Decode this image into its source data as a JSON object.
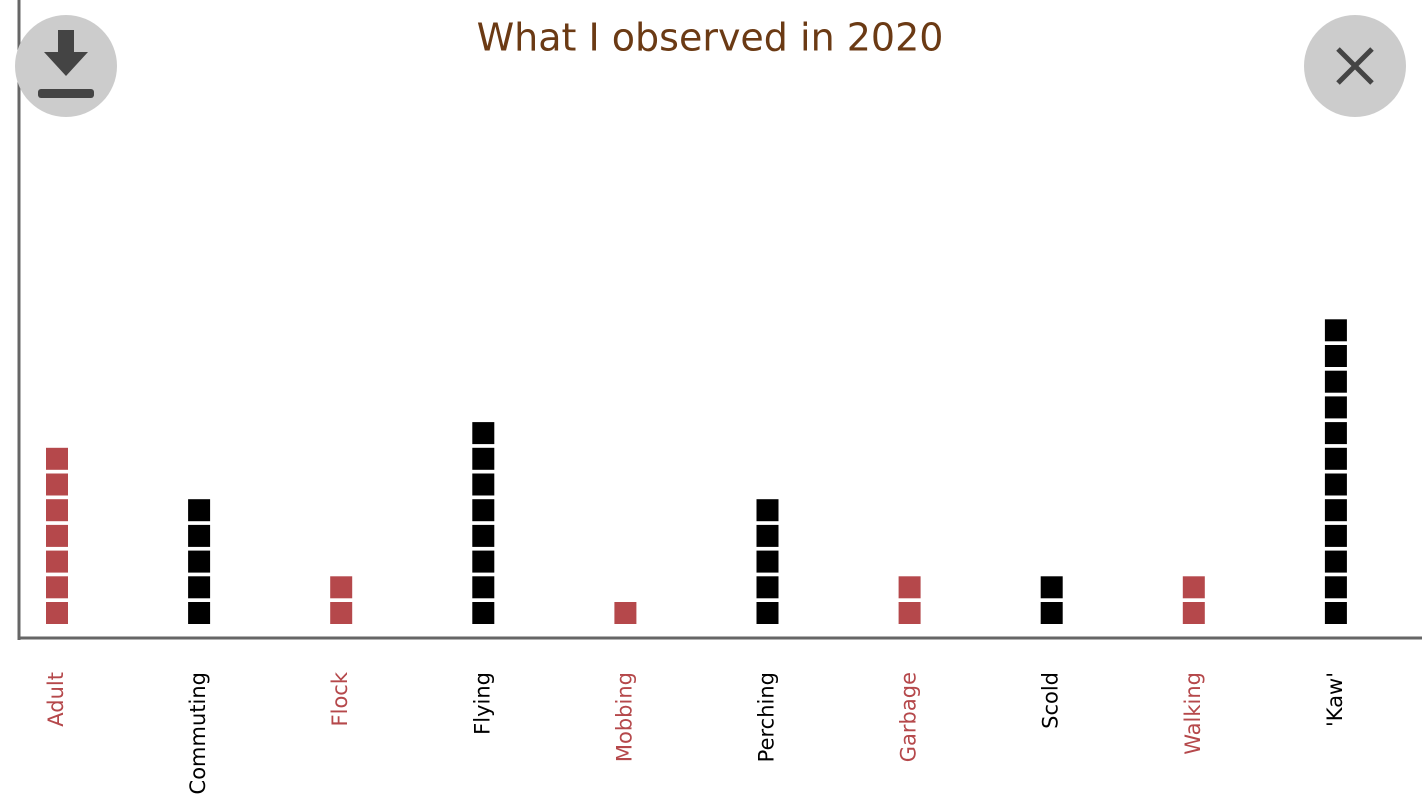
{
  "chart_data": {
    "type": "pictograph",
    "title": "What I observed in 2020",
    "categories": [
      "Adult",
      "Commuting",
      "Flock",
      "Flying",
      "Mobbing",
      "Perching",
      "Garbage",
      "Scold",
      "Walking",
      "'Kaw'"
    ],
    "values": [
      7,
      5,
      2,
      8,
      1,
      5,
      2,
      2,
      2,
      12
    ],
    "colors": [
      "#b5484b",
      "#000000",
      "#b5484b",
      "#000000",
      "#b5484b",
      "#000000",
      "#b5484b",
      "#000000",
      "#b5484b",
      "#000000"
    ]
  }
}
